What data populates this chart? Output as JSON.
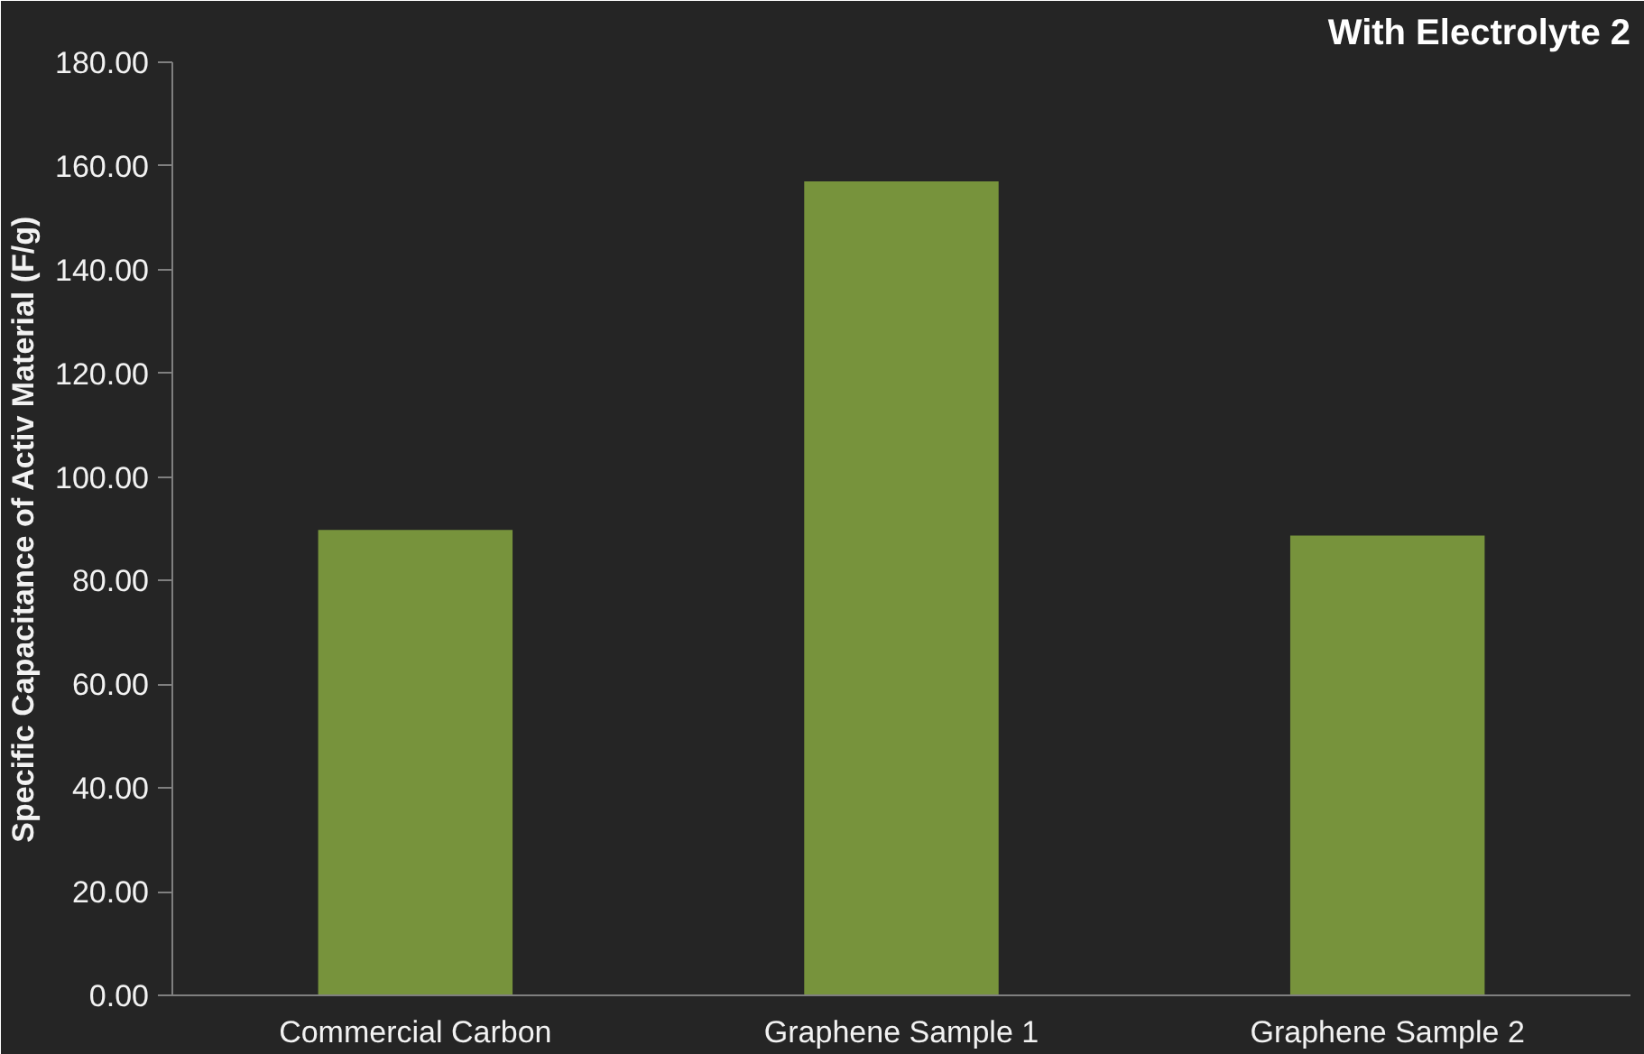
{
  "chart_data": {
    "type": "bar",
    "title": "With Electrolyte 2",
    "ylabel": "Specific Capacitance of Activ Material (F/g)",
    "categories": [
      "Commercial Carbon",
      "Graphene Sample 1",
      "Graphene Sample 2"
    ],
    "values": [
      89.8,
      157,
      88.7
    ],
    "color": "#77933c",
    "ylim": [
      0,
      180
    ],
    "yticks": [
      {
        "value": 0,
        "label": "0.00"
      },
      {
        "value": 20,
        "label": "20.00"
      },
      {
        "value": 40,
        "label": "40.00"
      },
      {
        "value": 60,
        "label": "60.00"
      },
      {
        "value": 80,
        "label": "80.00"
      },
      {
        "value": 100,
        "label": "100.00"
      },
      {
        "value": 120,
        "label": "120.00"
      },
      {
        "value": 140,
        "label": "140.00"
      },
      {
        "value": 160,
        "label": "160.00"
      },
      {
        "value": 180,
        "label": "180.00"
      }
    ],
    "grid": false
  }
}
